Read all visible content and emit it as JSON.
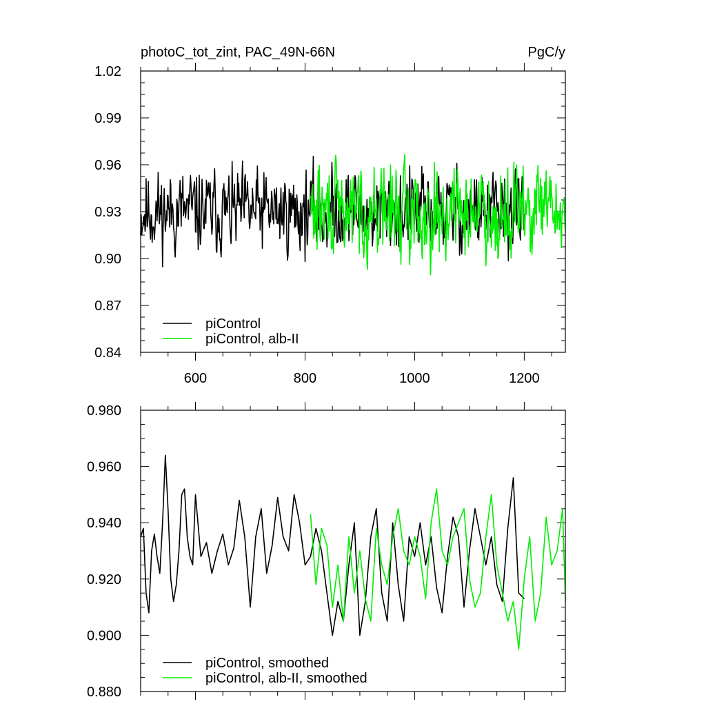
{
  "chart_data": [
    {
      "type": "line",
      "title": "photoC_tot_zint, PAC_49N-66N",
      "units": "PgC/y",
      "xlim": [
        500,
        1275
      ],
      "ylim": [
        0.84,
        1.02
      ],
      "xticks": [
        600,
        800,
        1000,
        1200
      ],
      "xtick_labels": [
        "600",
        "800",
        "1000",
        "1200"
      ],
      "yticks": [
        0.84,
        0.87,
        0.9,
        0.93,
        0.96,
        0.99,
        1.02
      ],
      "ytick_labels": [
        "0.84",
        "0.87",
        "0.90",
        "0.93",
        "0.96",
        "0.99",
        "1.02"
      ],
      "legend_position": "bottom-left",
      "grid": false,
      "series": [
        {
          "name": "piControl",
          "color": "#000000",
          "x_range": [
            500,
            1200
          ],
          "mean": 0.93,
          "amplitude": 0.02,
          "seed": 11
        },
        {
          "name": "piControl, alb-II",
          "color": "#00ee00",
          "x_range": [
            810,
            1275
          ],
          "mean": 0.93,
          "amplitude": 0.022,
          "seed": 29
        }
      ]
    },
    {
      "type": "line",
      "xlim": [
        500,
        1275
      ],
      "ylim": [
        0.88,
        0.98
      ],
      "xticks": [
        600,
        800,
        1000,
        1200
      ],
      "xtick_labels": [
        "",
        "",
        "",
        ""
      ],
      "yticks": [
        0.88,
        0.9,
        0.92,
        0.94,
        0.96,
        0.98
      ],
      "ytick_labels": [
        "0.880",
        "0.900",
        "0.920",
        "0.940",
        "0.960",
        "0.980"
      ],
      "legend_position": "bottom-left",
      "grid": false,
      "series": [
        {
          "name": "piControl, smoothed",
          "color": "#000000",
          "x": [
            500,
            505,
            510,
            515,
            520,
            525,
            530,
            535,
            540,
            545,
            550,
            555,
            560,
            565,
            570,
            575,
            580,
            585,
            590,
            595,
            600,
            610,
            620,
            630,
            640,
            650,
            660,
            670,
            680,
            690,
            700,
            710,
            720,
            730,
            740,
            750,
            760,
            770,
            780,
            790,
            800,
            810,
            820,
            830,
            840,
            850,
            860,
            870,
            880,
            890,
            900,
            910,
            920,
            930,
            940,
            950,
            960,
            970,
            980,
            990,
            1000,
            1010,
            1020,
            1030,
            1040,
            1050,
            1060,
            1070,
            1080,
            1090,
            1100,
            1110,
            1120,
            1130,
            1140,
            1150,
            1160,
            1170,
            1180,
            1190,
            1200
          ],
          "values": [
            0.935,
            0.938,
            0.915,
            0.908,
            0.93,
            0.936,
            0.928,
            0.922,
            0.94,
            0.964,
            0.945,
            0.92,
            0.912,
            0.918,
            0.93,
            0.95,
            0.952,
            0.935,
            0.928,
            0.925,
            0.95,
            0.928,
            0.933,
            0.922,
            0.93,
            0.936,
            0.925,
            0.931,
            0.948,
            0.935,
            0.91,
            0.935,
            0.945,
            0.922,
            0.932,
            0.949,
            0.935,
            0.93,
            0.95,
            0.94,
            0.925,
            0.928,
            0.938,
            0.93,
            0.915,
            0.9,
            0.912,
            0.905,
            0.925,
            0.94,
            0.9,
            0.912,
            0.935,
            0.945,
            0.915,
            0.905,
            0.94,
            0.918,
            0.905,
            0.935,
            0.928,
            0.94,
            0.925,
            0.935,
            0.917,
            0.908,
            0.928,
            0.942,
            0.935,
            0.91,
            0.93,
            0.945,
            0.935,
            0.925,
            0.935,
            0.918,
            0.912,
            0.938,
            0.956,
            0.915,
            0.913
          ]
        },
        {
          "name": "piControl, alb-II, smoothed",
          "color": "#00ee00",
          "x": [
            810,
            820,
            830,
            840,
            850,
            860,
            870,
            880,
            890,
            900,
            910,
            920,
            930,
            940,
            950,
            960,
            970,
            980,
            990,
            1000,
            1010,
            1020,
            1030,
            1040,
            1050,
            1060,
            1070,
            1080,
            1090,
            1100,
            1110,
            1120,
            1130,
            1140,
            1150,
            1160,
            1170,
            1180,
            1190,
            1200,
            1210,
            1220,
            1230,
            1240,
            1250,
            1260,
            1270,
            1275
          ],
          "values": [
            0.943,
            0.918,
            0.938,
            0.932,
            0.91,
            0.925,
            0.905,
            0.935,
            0.915,
            0.93,
            0.913,
            0.905,
            0.938,
            0.925,
            0.918,
            0.935,
            0.945,
            0.93,
            0.925,
            0.935,
            0.928,
            0.913,
            0.94,
            0.952,
            0.93,
            0.925,
            0.935,
            0.94,
            0.945,
            0.92,
            0.91,
            0.915,
            0.935,
            0.95,
            0.925,
            0.915,
            0.905,
            0.912,
            0.895,
            0.92,
            0.935,
            0.905,
            0.915,
            0.942,
            0.925,
            0.93,
            0.945,
            0.912
          ]
        }
      ]
    }
  ]
}
